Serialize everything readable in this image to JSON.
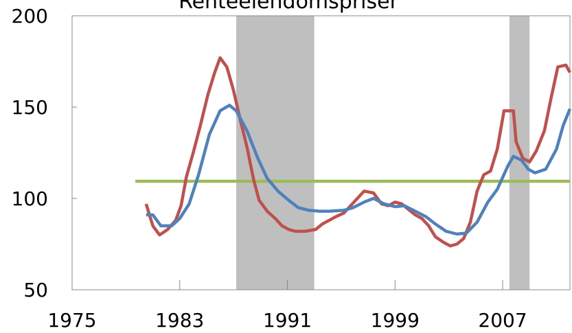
{
  "chart_data": {
    "type": "line",
    "title": "Renteeiendomspriser",
    "xlim": [
      1975,
      2012
    ],
    "ylim": [
      50,
      200
    ],
    "xticks": [
      1975,
      1983,
      1991,
      1999,
      2007
    ],
    "yticks": [
      50,
      100,
      150,
      200
    ],
    "shaded_periods": [
      [
        1987.2,
        1993.0
      ],
      [
        2007.5,
        2009.0
      ]
    ],
    "shade_color": "#bfbfbf",
    "series": [
      {
        "color": "#9bbb59",
        "x": [
          1979.7,
          2012.0
        ],
        "values": [
          109.4,
          109.4
        ]
      },
      {
        "color": "#c0504d",
        "x": [
          1980.5,
          1981.0,
          1981.5,
          1982.1,
          1982.7,
          1983.1,
          1983.5,
          1984.0,
          1984.5,
          1985.1,
          1985.6,
          1986.0,
          1986.5,
          1987.0,
          1987.5,
          1988.0,
          1988.5,
          1988.9,
          1989.5,
          1990.1,
          1990.6,
          1991.1,
          1991.6,
          1992.3,
          1993.1,
          1993.6,
          1994.1,
          1994.6,
          1995.2,
          1995.7,
          1996.2,
          1996.7,
          1997.4,
          1998.0,
          1998.5,
          1999.0,
          1999.5,
          2000.0,
          2000.5,
          2001.0,
          2001.5,
          2002.0,
          2002.6,
          2003.1,
          2003.6,
          2004.1,
          2004.6,
          2005.1,
          2005.6,
          2006.1,
          2006.6,
          2007.1,
          2007.8,
          2008.0,
          2008.5,
          2009.0,
          2009.5,
          2010.1,
          2010.6,
          2011.1,
          2011.7,
          2012.0
        ],
        "values": [
          97,
          85,
          80,
          83,
          88,
          96,
          112,
          125,
          139,
          157,
          169,
          177,
          172,
          159,
          143,
          128,
          110,
          99,
          93,
          89,
          85,
          83,
          82,
          82,
          83,
          86,
          88,
          90,
          92,
          96,
          100,
          104,
          103,
          97,
          96,
          98,
          97,
          94,
          91,
          89,
          85,
          79,
          76,
          74,
          75,
          78,
          87,
          104,
          113,
          115,
          127,
          148,
          148,
          131,
          122,
          120,
          126,
          137,
          155,
          172,
          173,
          169
        ]
      },
      {
        "color": "#4f81bd",
        "x": [
          1980.5,
          1981.0,
          1981.6,
          1982.4,
          1983.0,
          1983.7,
          1984.4,
          1985.2,
          1986.0,
          1986.7,
          1987.2,
          1988.0,
          1988.8,
          1989.5,
          1990.3,
          1991.1,
          1991.8,
          1992.6,
          1993.4,
          1994.1,
          1995.2,
          1995.9,
          1996.7,
          1997.4,
          1998.2,
          1999.0,
          1999.7,
          2000.5,
          2001.3,
          2002.0,
          2002.8,
          2003.6,
          2004.3,
          2005.1,
          2005.9,
          2006.6,
          2007.4,
          2007.8,
          2008.4,
          2008.9,
          2009.4,
          2010.2,
          2011.0,
          2011.5,
          2012.0
        ],
        "values": [
          91,
          91,
          85,
          85,
          89,
          97,
          113,
          135,
          148,
          151,
          148,
          137,
          122,
          111,
          104,
          99,
          95,
          93.5,
          93,
          93,
          93.5,
          95,
          98,
          100,
          97,
          95.5,
          96,
          93,
          90,
          86,
          82,
          80.5,
          81,
          87,
          98,
          105,
          118,
          123,
          121,
          116,
          114,
          116,
          127,
          140,
          149
        ]
      }
    ]
  }
}
